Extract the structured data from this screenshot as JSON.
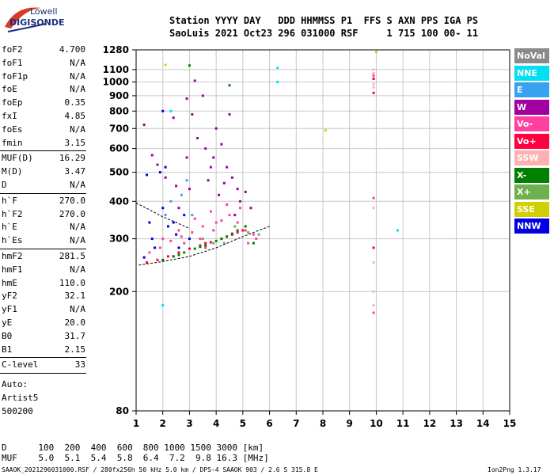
{
  "logo": {
    "line1": "Lowell",
    "line2": "DIGISONDE"
  },
  "header": {
    "line1": "Station YYYY DAY   DDD HHMMSS P1  FFS S AXN PPS IGA PS",
    "line2": "SaoLuis 2021 Oct23 296 031000 RSF     1 715 100 00- 11"
  },
  "params": [
    {
      "name": "foF2",
      "value": "4.700"
    },
    {
      "name": "foF1",
      "value": "N/A"
    },
    {
      "name": "foF1p",
      "value": "N/A"
    },
    {
      "name": "foE",
      "value": "N/A"
    },
    {
      "name": "foEp",
      "value": "0.35"
    },
    {
      "name": "fxI",
      "value": "4.85"
    },
    {
      "name": "foEs",
      "value": "N/A"
    },
    {
      "name": "fmin",
      "value": "3.15"
    },
    {
      "name": "MUF(D)",
      "value": "16.29"
    },
    {
      "name": "M(D)",
      "value": "3.47"
    },
    {
      "name": "D",
      "value": "N/A"
    },
    {
      "name": "h`F",
      "value": "270.0"
    },
    {
      "name": "h`F2",
      "value": "270.0"
    },
    {
      "name": "h`E",
      "value": "N/A"
    },
    {
      "name": "h`Es",
      "value": "N/A"
    },
    {
      "name": "hmF2",
      "value": "281.5"
    },
    {
      "name": "hmF1",
      "value": "N/A"
    },
    {
      "name": "hmE",
      "value": "110.0"
    },
    {
      "name": "yF2",
      "value": "32.1"
    },
    {
      "name": "yF1",
      "value": "N/A"
    },
    {
      "name": "yE",
      "value": "20.0"
    },
    {
      "name": "B0",
      "value": "31.7"
    },
    {
      "name": "B1",
      "value": "2.15"
    },
    {
      "name": "C-level",
      "value": "33"
    }
  ],
  "auto": {
    "line1": "Auto:",
    "line2": "Artist5",
    "line3": "500200"
  },
  "legend": [
    {
      "label": "NoVal",
      "color": "#8a8a8a"
    },
    {
      "label": "NNE",
      "color": "#00e0f0"
    },
    {
      "label": "E",
      "color": "#3aa0f0"
    },
    {
      "label": "W",
      "color": "#a000a0"
    },
    {
      "label": "Vo-",
      "color": "#ff40a0"
    },
    {
      "label": "Vo+",
      "color": "#ff0040"
    },
    {
      "label": "SSW",
      "color": "#ffb0b0"
    },
    {
      "label": "X-",
      "color": "#008000"
    },
    {
      "label": "X+",
      "color": "#70b050"
    },
    {
      "label": "SSE",
      "color": "#d0d000"
    },
    {
      "label": "NNW",
      "color": "#0000e0"
    }
  ],
  "bottom": {
    "row1": "D      100  200  400  600  800 1000 1500 3000 [km]",
    "row2": "MUF    5.0  5.1  5.4  5.8  6.4  7.2  9.8 16.3 [MHz]"
  },
  "footer": {
    "left": "SAAOK_2021296031000.RSF / 280fx256h 50 kHz 5.0 km / DPS-4 SAAOK 903 / 2.6 S 315.8 E",
    "right": "Ion2Png 1.3.17"
  },
  "chart_data": {
    "type": "scatter",
    "title": "",
    "xlabel": "",
    "ylabel": "",
    "xlim": [
      1,
      15
    ],
    "ylim": [
      80,
      1280
    ],
    "x_ticks": [
      1,
      2,
      3,
      4,
      5,
      6,
      7,
      8,
      9,
      10,
      11,
      12,
      13,
      14,
      15
    ],
    "y_ticks": [
      80,
      200,
      300,
      400,
      500,
      600,
      700,
      800,
      900,
      1000,
      1100,
      1280
    ],
    "y_scale": "log",
    "grid": true,
    "series": [
      {
        "name": "W",
        "color": "#a000a0",
        "points": [
          [
            1.3,
            720
          ],
          [
            1.6,
            570
          ],
          [
            1.8,
            530
          ],
          [
            2.1,
            480
          ],
          [
            2.5,
            450
          ],
          [
            2.9,
            560
          ],
          [
            3.1,
            780
          ],
          [
            3.3,
            650
          ],
          [
            3.6,
            600
          ],
          [
            3.9,
            560
          ],
          [
            4.2,
            620
          ],
          [
            4.4,
            520
          ],
          [
            4.6,
            480
          ],
          [
            4.8,
            440
          ],
          [
            5.1,
            430
          ],
          [
            3.5,
            900
          ],
          [
            3.2,
            1010
          ],
          [
            4.0,
            700
          ],
          [
            4.5,
            780
          ],
          [
            2.4,
            760
          ],
          [
            2.9,
            880
          ],
          [
            3.8,
            520
          ],
          [
            4.3,
            460
          ],
          [
            4.9,
            400
          ],
          [
            3.0,
            440
          ],
          [
            2.6,
            380
          ],
          [
            3.7,
            470
          ],
          [
            4.1,
            420
          ],
          [
            4.7,
            360
          ],
          [
            5.3,
            380
          ]
        ]
      },
      {
        "name": "Vo-",
        "color": "#ff40a0",
        "points": [
          [
            1.5,
            270
          ],
          [
            1.9,
            280
          ],
          [
            2.3,
            295
          ],
          [
            2.7,
            305
          ],
          [
            3.1,
            315
          ],
          [
            3.5,
            330
          ],
          [
            3.9,
            320
          ],
          [
            4.2,
            345
          ],
          [
            4.5,
            360
          ],
          [
            4.8,
            340
          ],
          [
            5.1,
            320
          ],
          [
            5.4,
            310
          ],
          [
            2.0,
            300
          ],
          [
            2.6,
            320
          ],
          [
            3.2,
            350
          ],
          [
            3.8,
            370
          ],
          [
            4.4,
            390
          ],
          [
            4.9,
            380
          ],
          [
            5.5,
            300
          ],
          [
            4.0,
            340
          ],
          [
            3.4,
            300
          ],
          [
            2.8,
            290
          ],
          [
            4.6,
            310
          ],
          [
            5.2,
            290
          ],
          [
            3.6,
            280
          ],
          [
            9.9,
            1050
          ],
          [
            9.9,
            410
          ],
          [
            9.9,
            170
          ]
        ]
      },
      {
        "name": "Vo+",
        "color": "#ff0040",
        "points": [
          [
            1.4,
            250
          ],
          [
            1.8,
            255
          ],
          [
            2.2,
            262
          ],
          [
            2.6,
            270
          ],
          [
            3.0,
            278
          ],
          [
            3.4,
            285
          ],
          [
            3.8,
            292
          ],
          [
            4.2,
            300
          ],
          [
            4.6,
            310
          ],
          [
            5.0,
            320
          ],
          [
            2.4,
            262
          ],
          [
            3.6,
            290
          ],
          [
            4.4,
            305
          ],
          [
            4.8,
            315
          ],
          [
            9.9,
            1025
          ],
          [
            9.9,
            920
          ],
          [
            9.9,
            280
          ]
        ]
      },
      {
        "name": "NNW",
        "color": "#0000e0",
        "points": [
          [
            1.3,
            260
          ],
          [
            1.6,
            300
          ],
          [
            2.0,
            380
          ],
          [
            2.2,
            330
          ],
          [
            2.5,
            310
          ],
          [
            2.8,
            360
          ],
          [
            3.0,
            300
          ],
          [
            1.9,
            500
          ],
          [
            2.1,
            520
          ],
          [
            2.4,
            340
          ],
          [
            1.7,
            280
          ],
          [
            2.6,
            280
          ],
          [
            1.5,
            340
          ],
          [
            2.0,
            800
          ],
          [
            1.4,
            490
          ]
        ]
      },
      {
        "name": "X-",
        "color": "#008000",
        "points": [
          [
            2.0,
            255
          ],
          [
            2.4,
            262
          ],
          [
            2.8,
            270
          ],
          [
            3.2,
            278
          ],
          [
            3.6,
            285
          ],
          [
            4.0,
            295
          ],
          [
            4.4,
            305
          ],
          [
            4.8,
            320
          ],
          [
            5.1,
            330
          ],
          [
            2.6,
            265
          ],
          [
            3.4,
            282
          ],
          [
            4.2,
            300
          ],
          [
            4.6,
            312
          ],
          [
            3.0,
            1135
          ],
          [
            4.5,
            975
          ],
          [
            5.4,
            290
          ]
        ]
      },
      {
        "name": "X+",
        "color": "#70b050",
        "points": [
          [
            3.5,
            300
          ],
          [
            4.3,
            290
          ],
          [
            4.7,
            330
          ],
          [
            5.2,
            315
          ],
          [
            5.6,
            310
          ],
          [
            3.9,
            290
          ]
        ]
      },
      {
        "name": "NNE",
        "color": "#00e0f0",
        "points": [
          [
            6.3,
            1115
          ],
          [
            6.3,
            1000
          ],
          [
            10.8,
            320
          ],
          [
            2.3,
            800
          ],
          [
            2.0,
            180
          ]
        ]
      },
      {
        "name": "E",
        "color": "#3aa0f0",
        "points": [
          [
            2.3,
            400
          ],
          [
            2.7,
            420
          ],
          [
            3.1,
            360
          ],
          [
            2.9,
            470
          ],
          [
            2.1,
            360
          ]
        ]
      },
      {
        "name": "SSE",
        "color": "#d0d000",
        "points": [
          [
            2.1,
            1140
          ],
          [
            8.1,
            690
          ],
          [
            10.0,
            1260
          ]
        ]
      },
      {
        "name": "SSW",
        "color": "#ffb0b0",
        "points": [
          [
            9.9,
            1100
          ],
          [
            9.9,
            1070
          ],
          [
            9.9,
            985
          ],
          [
            9.9,
            960
          ],
          [
            9.9,
            380
          ],
          [
            9.9,
            250
          ],
          [
            9.9,
            200
          ],
          [
            9.9,
            180
          ]
        ]
      }
    ],
    "trace": {
      "name": "profile",
      "color": "#000000",
      "points": [
        [
          1.1,
          245
        ],
        [
          2.0,
          252
        ],
        [
          3.0,
          262
        ],
        [
          4.0,
          280
        ],
        [
          5.0,
          305
        ],
        [
          5.6,
          320
        ],
        [
          6.0,
          330
        ]
      ]
    },
    "trace2": {
      "name": "profile-upper",
      "color": "#000000",
      "points": [
        [
          1.0,
          395
        ],
        [
          1.5,
          375
        ],
        [
          2.0,
          355
        ],
        [
          2.5,
          340
        ],
        [
          3.0,
          325
        ]
      ]
    }
  }
}
